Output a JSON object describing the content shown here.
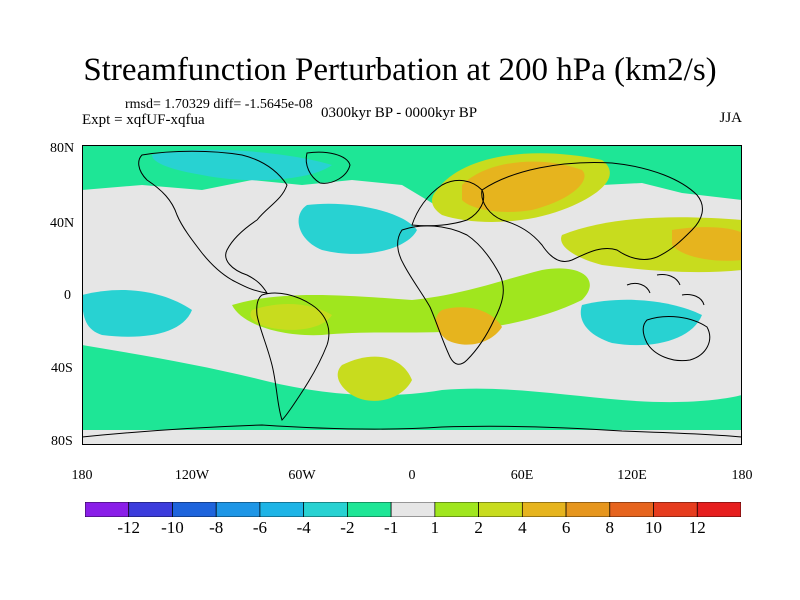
{
  "figure": {
    "title": "Streamfunction Perturbation at 200 hPa (km2/s)",
    "rmsd_line": "rmsd= 1.70329 diff= -1.5645e-08",
    "expt_line": "Expt = xqfUF-xqfua",
    "period_line": "0300kyr BP - 0000kyr BP",
    "season": "JJA"
  },
  "axes": {
    "y_labels": [
      "80N",
      "40N",
      "0",
      "40S",
      "80S"
    ],
    "x_labels": [
      "180",
      "120W",
      "60W",
      "0",
      "60E",
      "120E",
      "180"
    ]
  },
  "colorbar": {
    "labels": [
      "-12",
      "-10",
      "-8",
      "-6",
      "-4",
      "-2",
      "-1",
      "1",
      "2",
      "4",
      "6",
      "8",
      "10",
      "12"
    ],
    "colors": [
      "#8a1ee8",
      "#3c3cdc",
      "#1e64dc",
      "#1e96e6",
      "#1eb4e6",
      "#28d2d2",
      "#1ee696",
      "#e6e6e6",
      "#a0e61e",
      "#c8dc1e",
      "#e6b41e",
      "#e6961e",
      "#e6641e",
      "#e63c1e",
      "#e61e1e"
    ]
  },
  "map": {
    "colors": {
      "ocean_background": "#e6e6e6",
      "neutral": "#e6e6e6",
      "minus_1_to_2": "#1ee696",
      "minus_2_to_4": "#28d2d2",
      "plus_1_to_2": "#a0e61e",
      "plus_2_to_4": "#c8dc1e",
      "plus_4_to_6": "#e6b41e",
      "coastline": "#000000"
    }
  }
}
